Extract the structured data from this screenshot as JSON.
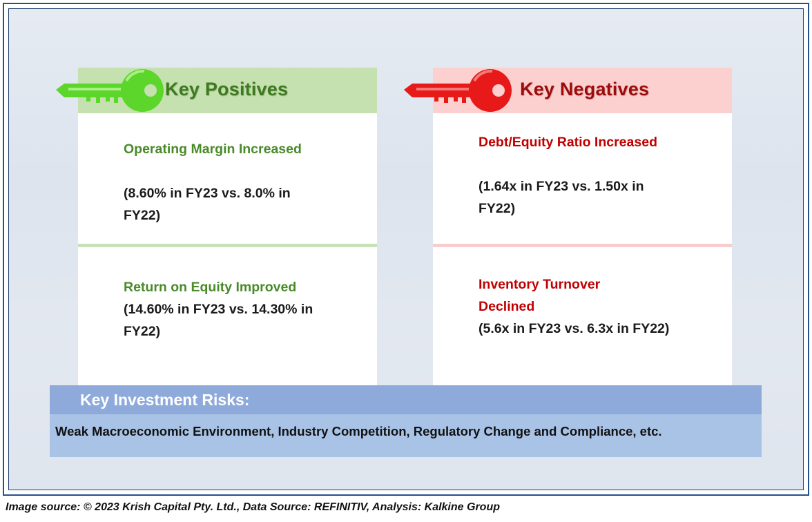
{
  "positives": {
    "title": "Key Positives",
    "items": [
      {
        "title": "Operating Margin Increased",
        "detail": "(8.60% in FY23 vs. 8.0% in FY22)"
      },
      {
        "title": "Return on Equity Improved",
        "detail": "(14.60% in FY23 vs. 14.30% in FY22)"
      }
    ]
  },
  "negatives": {
    "title": "Key Negatives",
    "items": [
      {
        "title": "Debt/Equity Ratio Increased",
        "detail": "(1.64x in FY23 vs. 1.50x in FY22)"
      },
      {
        "title": "Inventory Turnover Declined",
        "detail": "(5.6x in FY23 vs. 6.3x in FY22)"
      }
    ]
  },
  "risks": {
    "title": "Key Investment Risks:",
    "text": "Weak Macroeconomic Environment, Industry Competition, Regulatory Change and Compliance, etc."
  },
  "caption": "Image source: © 2023 Krish Capital Pty. Ltd., Data Source: REFINITIV, Analysis: Kalkine Group",
  "colors": {
    "positive_header": "#c5e1b0",
    "positive_key": "#5cd62a",
    "positive_text": "#4a8a2a",
    "negative_header": "#fdd0d0",
    "negative_key": "#e81919",
    "negative_text": "#c00000",
    "risks_header": "#8eaadb",
    "risks_body": "#a9c3e6",
    "frame_border": "#24508e"
  },
  "icons": {
    "positives": "green-key-icon",
    "negatives": "red-key-icon"
  }
}
